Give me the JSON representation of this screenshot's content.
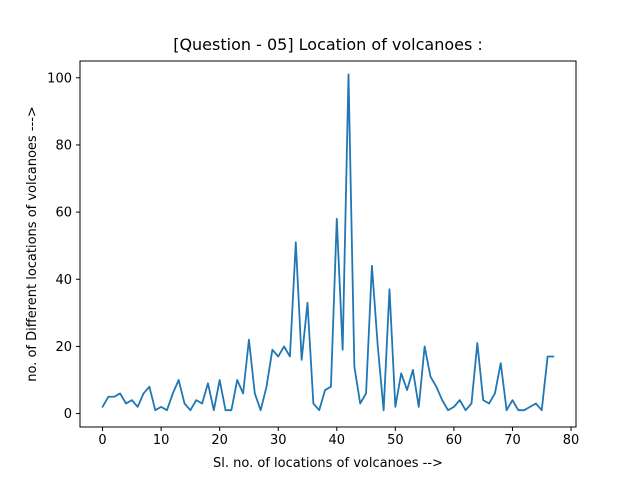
{
  "chart_data": {
    "type": "line",
    "title": "[Question - 05] Location of volcanoes :",
    "xlabel": "Sl. no. of locations of volcanoes -->",
    "ylabel": "no. of Different locations of volcanoes --->",
    "xlim": [
      -3.85,
      80.85
    ],
    "ylim": [
      -4.0,
      105.0
    ],
    "xticks": [
      0,
      10,
      20,
      30,
      40,
      50,
      60,
      70,
      80
    ],
    "yticks": [
      0,
      20,
      40,
      60,
      80,
      100
    ],
    "grid": false,
    "series": [
      {
        "color": "#1f77b4",
        "x": [
          0,
          1,
          2,
          3,
          4,
          5,
          6,
          7,
          8,
          9,
          10,
          11,
          12,
          13,
          14,
          15,
          16,
          17,
          18,
          19,
          20,
          21,
          22,
          23,
          24,
          25,
          26,
          27,
          28,
          29,
          30,
          31,
          32,
          33,
          34,
          35,
          36,
          37,
          38,
          39,
          40,
          41,
          42,
          43,
          44,
          45,
          46,
          47,
          48,
          49,
          50,
          51,
          52,
          53,
          54,
          55,
          56,
          57,
          58,
          59,
          60,
          61,
          62,
          63,
          64,
          65,
          66,
          67,
          68,
          69,
          70,
          71,
          72,
          73,
          74,
          75,
          76,
          77
        ],
        "y": [
          2,
          5,
          5,
          6,
          3,
          4,
          2,
          6,
          8,
          1,
          2,
          1,
          6,
          10,
          3,
          1,
          4,
          3,
          9,
          1,
          10,
          1,
          1,
          10,
          6,
          22,
          6,
          1,
          8,
          19,
          17,
          20,
          17,
          51,
          16,
          33,
          3,
          1,
          7,
          8,
          58,
          19,
          101,
          14,
          3,
          6,
          44,
          20,
          1,
          37,
          2,
          12,
          7,
          13,
          2,
          20,
          11,
          8,
          4,
          1,
          2,
          4,
          1,
          3,
          21,
          4,
          3,
          6,
          15,
          1,
          4,
          1,
          1,
          2,
          3,
          1,
          17,
          17
        ]
      }
    ]
  }
}
